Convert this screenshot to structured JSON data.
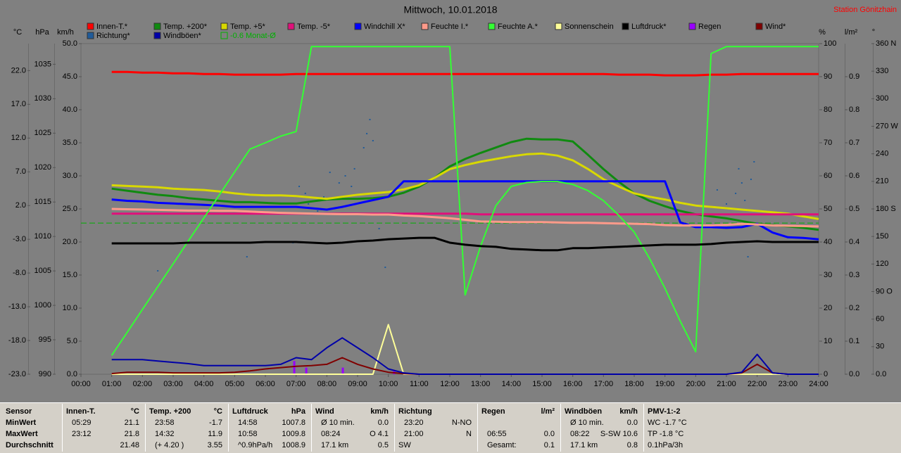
{
  "chart_data": {
    "type": "line",
    "title": "Mittwoch, 10.01.2018",
    "subtitle": "Station Gönitzhain",
    "x": [
      1,
      1.5,
      2,
      2.5,
      3,
      3.5,
      4,
      4.5,
      5,
      5.5,
      6,
      6.5,
      7,
      7.5,
      8,
      8.5,
      9,
      9.5,
      10,
      10.5,
      11,
      11.5,
      12,
      12.5,
      13,
      13.5,
      14,
      14.5,
      15,
      15.5,
      16,
      16.5,
      17,
      17.5,
      18,
      18.5,
      19,
      19.5,
      20,
      20.5,
      21,
      21.5,
      22,
      22.5,
      23,
      23.5,
      24
    ],
    "xlim": [
      0,
      24
    ],
    "xticks": [
      {
        "value": 0,
        "label": "00:00"
      },
      {
        "value": 1,
        "label": "01:00"
      },
      {
        "value": 2,
        "label": "02:00"
      },
      {
        "value": 3,
        "label": "03:00"
      },
      {
        "value": 4,
        "label": "04:00"
      },
      {
        "value": 5,
        "label": "05:00"
      },
      {
        "value": 6,
        "label": "06:00"
      },
      {
        "value": 7,
        "label": "07:00"
      },
      {
        "value": 8,
        "label": "08:00"
      },
      {
        "value": 9,
        "label": "09:00"
      },
      {
        "value": 10,
        "label": "10:00"
      },
      {
        "value": 11,
        "label": "11:00"
      },
      {
        "value": 12,
        "label": "12:00"
      },
      {
        "value": 13,
        "label": "13:00"
      },
      {
        "value": 14,
        "label": "14:00"
      },
      {
        "value": 15,
        "label": "15:00"
      },
      {
        "value": 16,
        "label": "16:00"
      },
      {
        "value": 17,
        "label": "17:00"
      },
      {
        "value": 18,
        "label": "18:00"
      },
      {
        "value": 19,
        "label": "19:00"
      },
      {
        "value": 20,
        "label": "20:00"
      },
      {
        "value": 21,
        "label": "21:00"
      },
      {
        "value": 22,
        "label": "22:00"
      },
      {
        "value": 23,
        "label": "23:00"
      },
      {
        "value": 24,
        "label": "24:00"
      }
    ],
    "axes": {
      "temp": {
        "label": "°C",
        "lim": [
          -23,
          26
        ],
        "ticks": [
          {
            "value": -23,
            "label": "-23.0"
          },
          {
            "value": -18,
            "label": "-18.0"
          },
          {
            "value": -13,
            "label": "-13.0"
          },
          {
            "value": -8,
            "label": "-8.0"
          },
          {
            "value": -3,
            "label": "-3.0"
          },
          {
            "value": 2,
            "label": "2.0"
          },
          {
            "value": 7,
            "label": "7.0"
          },
          {
            "value": 12,
            "label": "12.0"
          },
          {
            "value": 17,
            "label": "17.0"
          },
          {
            "value": 22,
            "label": "22.0"
          }
        ]
      },
      "hpa": {
        "label": "hPa",
        "lim": [
          990,
          1038
        ],
        "ticks": [
          990,
          995,
          1000,
          1005,
          1010,
          1015,
          1020,
          1025,
          1030,
          1035
        ]
      },
      "kmh": {
        "label": "km/h",
        "lim": [
          0,
          50
        ],
        "ticks": [
          {
            "value": 0,
            "label": "0.0"
          },
          {
            "value": 5,
            "label": "5.0"
          },
          {
            "value": 10,
            "label": "10.0"
          },
          {
            "value": 15,
            "label": "15.0"
          },
          {
            "value": 20,
            "label": "20.0"
          },
          {
            "value": 25,
            "label": "25.0"
          },
          {
            "value": 30,
            "label": "30.0"
          },
          {
            "value": 35,
            "label": "35.0"
          },
          {
            "value": 40,
            "label": "40.0"
          },
          {
            "value": 45,
            "label": "45.0"
          },
          {
            "value": 50,
            "label": "50.0"
          }
        ]
      },
      "pct": {
        "label": "%",
        "lim": [
          0,
          100
        ],
        "ticks": [
          0,
          10,
          20,
          30,
          40,
          50,
          60,
          70,
          80,
          90,
          100
        ]
      },
      "rain": {
        "label": "l/m²",
        "lim": [
          0,
          1
        ],
        "ticks": [
          {
            "value": 0,
            "label": "0.0"
          },
          0.1,
          0.2,
          0.3,
          0.4,
          0.5,
          0.6,
          0.7,
          0.8,
          0.9
        ]
      },
      "deg": {
        "label": "°",
        "lim": [
          0,
          360
        ],
        "ticks": [
          {
            "value": 0,
            "label": "0.0"
          },
          30,
          60,
          {
            "value": 90,
            "label": "90 O"
          },
          120,
          150,
          {
            "value": 180,
            "label": "180 S"
          },
          210,
          240,
          {
            "value": 270,
            "label": "270 W"
          },
          300,
          330,
          {
            "value": 360,
            "label": "360 N"
          }
        ]
      }
    },
    "series": [
      {
        "name": "Innen-T.*",
        "type": "line",
        "axis": "temp",
        "color": "#ff0000",
        "values": [
          21.8,
          21.8,
          21.7,
          21.7,
          21.6,
          21.6,
          21.5,
          21.5,
          21.4,
          21.4,
          21.4,
          21.4,
          21.5,
          21.5,
          21.5,
          21.5,
          21.5,
          21.5,
          21.5,
          21.5,
          21.5,
          21.5,
          21.5,
          21.5,
          21.5,
          21.5,
          21.5,
          21.5,
          21.5,
          21.5,
          21.5,
          21.5,
          21.5,
          21.4,
          21.4,
          21.4,
          21.3,
          21.3,
          21.3,
          21.4,
          21.4,
          21.5,
          21.5,
          21.5,
          21.5,
          21.5,
          21.5
        ]
      },
      {
        "name": "Temp. +200*",
        "type": "line",
        "axis": "temp",
        "color": "#108a10",
        "values": [
          4.5,
          4.2,
          3.9,
          3.6,
          3.4,
          3.1,
          2.9,
          2.7,
          2.5,
          2.5,
          2.4,
          2.3,
          2.3,
          2.6,
          2.9,
          3.0,
          3.0,
          3.1,
          3.3,
          3.9,
          4.8,
          6.1,
          7.8,
          8.9,
          9.8,
          10.6,
          11.4,
          11.9,
          11.8,
          11.8,
          11.5,
          9.5,
          7.4,
          5.5,
          3.8,
          2.7,
          1.9,
          1.2,
          0.7,
          0.4,
          0.1,
          -0.3,
          -0.7,
          -0.9,
          -1.1,
          -1.3,
          -1.6
        ]
      },
      {
        "name": "Temp. +5*",
        "type": "line",
        "axis": "temp",
        "color": "#d8d800",
        "values": [
          5.0,
          4.9,
          4.8,
          4.7,
          4.5,
          4.4,
          4.3,
          4.1,
          3.8,
          3.6,
          3.5,
          3.5,
          3.4,
          3.2,
          3.0,
          3.3,
          3.6,
          3.8,
          4.0,
          4.4,
          5.0,
          6.1,
          7.4,
          8.0,
          8.5,
          8.9,
          9.3,
          9.6,
          9.7,
          9.4,
          8.7,
          7.4,
          5.9,
          4.8,
          3.8,
          3.3,
          2.9,
          2.4,
          2.0,
          1.8,
          1.6,
          1.4,
          1.2,
          1.0,
          0.8,
          0.4,
          0.0
        ]
      },
      {
        "name": "Temp. -5*",
        "type": "line",
        "axis": "temp",
        "color": "#e0107a",
        "values": [
          0.8,
          0.8,
          0.8,
          0.8,
          0.8,
          0.8,
          0.8,
          0.8,
          0.8,
          0.8,
          0.8,
          0.8,
          0.8,
          0.8,
          0.8,
          0.8,
          0.8,
          0.8,
          0.8,
          0.8,
          0.8,
          0.8,
          0.8,
          0.8,
          0.7,
          0.7,
          0.7,
          0.7,
          0.7,
          0.7,
          0.7,
          0.7,
          0.7,
          0.7,
          0.7,
          0.7,
          0.7,
          0.7,
          0.7,
          0.7,
          0.7,
          0.7,
          0.7,
          0.7,
          0.7,
          0.7,
          0.7
        ]
      },
      {
        "name": "Windchill X*",
        "type": "line",
        "axis": "temp",
        "color": "#0000ff",
        "values": [
          2.9,
          2.7,
          2.6,
          2.4,
          2.3,
          2.2,
          2.1,
          2.0,
          1.8,
          1.8,
          1.8,
          1.8,
          1.8,
          1.6,
          1.4,
          1.8,
          2.3,
          2.8,
          3.3,
          5.6,
          5.6,
          5.6,
          5.6,
          5.6,
          5.6,
          5.6,
          5.6,
          5.6,
          5.6,
          5.6,
          5.6,
          5.6,
          5.6,
          5.6,
          5.6,
          5.6,
          5.6,
          -0.5,
          -1.2,
          -1.2,
          -1.3,
          -1.2,
          -0.7,
          -2.0,
          -2.7,
          -2.8,
          -3.0
        ]
      },
      {
        "name": "Feuchte I.*",
        "type": "line",
        "axis": "pct",
        "color": "#ff9a8a",
        "values": [
          50.0,
          49.9,
          49.8,
          49.7,
          49.6,
          49.5,
          49.5,
          49.4,
          49.4,
          49.2,
          49.0,
          48.8,
          48.7,
          48.6,
          48.5,
          48.4,
          48.4,
          48.3,
          48.3,
          48.0,
          47.8,
          47.5,
          47.2,
          46.7,
          46.2,
          46.1,
          46.0,
          46.0,
          46.0,
          45.9,
          45.8,
          45.8,
          45.7,
          45.6,
          45.5,
          45.4,
          45.1,
          45.0,
          45.0,
          45.0,
          45.2,
          45.5,
          45.3,
          45.0,
          44.9,
          44.8,
          44.7
        ]
      },
      {
        "name": "Feuchte A.*",
        "type": "line",
        "axis": "pct",
        "color": "#33ff33",
        "values": [
          5.7,
          12.6,
          19.6,
          26.5,
          33.4,
          40.4,
          47.3,
          54.2,
          61.2,
          68.1,
          70.0,
          72.0,
          73.4,
          99.1,
          99.1,
          99.1,
          99.1,
          99.1,
          99.1,
          99.1,
          99.1,
          99.1,
          99.1,
          24.0,
          38.7,
          51.0,
          56.8,
          58.0,
          58.3,
          58.3,
          57.4,
          55.5,
          52.5,
          48.0,
          43.0,
          35.0,
          26.0,
          16.0,
          6.8,
          97.0,
          99.1,
          99.1,
          99.1,
          99.1,
          99.1,
          99.1,
          99.1
        ]
      },
      {
        "name": "Sonnenschein",
        "type": "line",
        "axis": "kmh",
        "color": "#ffff99",
        "values": [
          0,
          0,
          0,
          0,
          0,
          0,
          0,
          0,
          0,
          0,
          0,
          0,
          0,
          0,
          0,
          0,
          0,
          0,
          7.5,
          0,
          0,
          0,
          0,
          0,
          0,
          0,
          0,
          0,
          0,
          0,
          0,
          0,
          0,
          0,
          0,
          0,
          0,
          0,
          0,
          0,
          0,
          0,
          0,
          0,
          0,
          0,
          0
        ]
      },
      {
        "name": "Luftdruck*",
        "type": "line",
        "axis": "hpa",
        "color": "#000000",
        "values": [
          1009.0,
          1009.0,
          1009.0,
          1009.0,
          1009.0,
          1009.1,
          1009.1,
          1009.1,
          1009.1,
          1009.1,
          1009.2,
          1009.2,
          1009.2,
          1009.1,
          1009.0,
          1009.1,
          1009.3,
          1009.4,
          1009.6,
          1009.7,
          1009.8,
          1009.8,
          1009.1,
          1008.8,
          1008.6,
          1008.5,
          1008.2,
          1008.1,
          1008.0,
          1008.0,
          1008.3,
          1008.3,
          1008.4,
          1008.5,
          1008.6,
          1008.7,
          1008.8,
          1008.8,
          1008.8,
          1008.9,
          1009.1,
          1009.2,
          1009.3,
          1009.2,
          1009.2,
          1009.2,
          1009.2
        ]
      },
      {
        "name": "Regen",
        "type": "bar",
        "axis": "rain",
        "color": "#9900ff",
        "x": [
          6.94,
          7.33,
          8.52,
          10.19
        ],
        "values": [
          0.04,
          0.02,
          0.02,
          0.01
        ]
      },
      {
        "name": "Wind*",
        "type": "line",
        "axis": "kmh",
        "color": "#800000",
        "values": [
          0.1,
          0.3,
          0.3,
          0.3,
          0.2,
          0.2,
          0.2,
          0.2,
          0.3,
          0.5,
          0.8,
          1.0,
          1.2,
          1.3,
          1.5,
          2.5,
          1.5,
          0.8,
          0.3,
          0.1,
          0,
          0,
          0,
          0,
          0,
          0,
          0,
          0,
          0,
          0,
          0,
          0,
          0,
          0,
          0,
          0,
          0,
          0,
          0,
          0,
          0,
          0.2,
          1.5,
          0.2,
          0,
          0,
          0
        ]
      },
      {
        "name": "Richtung*",
        "type": "scatter",
        "axis": "deg",
        "color": "#1f5b9a",
        "x": [
          2.5,
          5.4,
          6.9,
          7.1,
          7.3,
          7.4,
          7.7,
          7.9,
          8.1,
          8.4,
          8.6,
          8.8,
          8.9,
          9.2,
          9.3,
          9.4,
          9.5,
          9.7,
          9.9,
          20.7,
          21.0,
          21.3,
          21.4,
          21.5,
          21.6,
          21.8,
          21.9,
          22.0,
          21.7
        ],
        "values": [
          112.6,
          127.9,
          143.2,
          204.5,
          196.9,
          185.4,
          177.7,
          193.0,
          219.8,
          208.3,
          216.0,
          204.5,
          223.7,
          246.6,
          262.0,
          277.3,
          254.3,
          158.6,
          116.4,
          200.7,
          185.4,
          196.9,
          223.7,
          208.3,
          189.2,
          212.2,
          231.3,
          177.7,
          127.9
        ]
      },
      {
        "name": "Windböen*",
        "type": "line",
        "axis": "kmh",
        "color": "#0000a8",
        "values": [
          2.2,
          2.2,
          2.2,
          2.0,
          1.8,
          1.6,
          1.3,
          1.3,
          1.3,
          1.3,
          1.3,
          1.5,
          2.5,
          2.2,
          4.0,
          5.5,
          4.0,
          2.5,
          0.8,
          0.2,
          0,
          0,
          0,
          0,
          0,
          0,
          0,
          0,
          0,
          0,
          0,
          0,
          0,
          0,
          0,
          0,
          0,
          0,
          0,
          0,
          0,
          0.3,
          3.0,
          0.2,
          0,
          0,
          0
        ]
      },
      {
        "name": "-0.6 Monat-Ø",
        "type": "hline",
        "axis": "temp",
        "color": "#00b000",
        "value": -0.6
      }
    ]
  },
  "table": {
    "sensor": {
      "header": "Sensor",
      "rows": [
        "MinWert",
        "MaxWert",
        "Durchschnitt"
      ]
    },
    "columns": [
      {
        "header": "Innen-T.",
        "unit": "°C",
        "rows": [
          [
            "05:29",
            "21.1"
          ],
          [
            "23:12",
            "21.8"
          ],
          [
            "21.48"
          ]
        ]
      },
      {
        "header": "Temp. +200",
        "unit": "°C",
        "rows": [
          [
            "23:58",
            "-1.7"
          ],
          [
            "14:32",
            "11.9"
          ],
          [
            "(+ 4.20 )",
            "3.55"
          ]
        ]
      },
      {
        "header": "Luftdruck",
        "unit": "hPa",
        "rows": [
          [
            "14:58",
            "1007.8"
          ],
          [
            "10:58",
            "1009.8"
          ],
          [
            "^0.9hPa/h",
            "1008.9"
          ]
        ]
      },
      {
        "header": "Wind",
        "unit": "km/h",
        "rows": [
          [
            "Ø 10 min.",
            "0.0"
          ],
          [
            "08:24",
            "O 4.1"
          ],
          [
            "17.1 km",
            "0.5"
          ]
        ]
      },
      {
        "header": "Richtung",
        "rows": [
          [
            "23:20",
            "N-NO"
          ],
          [
            "21:00",
            "N"
          ],
          [
            "SW"
          ]
        ]
      },
      {
        "header": "Regen",
        "unit": "l/m²",
        "rows": [
          [],
          [
            "06:55",
            "0.0"
          ],
          [
            "Gesamt:",
            "0.1"
          ]
        ]
      },
      {
        "header": "Windböen",
        "unit": "km/h",
        "rows": [
          [
            "Ø 10 min.",
            "0.0"
          ],
          [
            "08:22",
            "S-SW 10.6"
          ],
          [
            "17.1 km",
            "0.8"
          ]
        ]
      },
      {
        "header": "PMV-1:-2",
        "rows": [
          [
            "WC -1.7 °C"
          ],
          [
            "TP -1.8 °C"
          ],
          [
            "0.1hPa/3h"
          ]
        ]
      }
    ]
  }
}
